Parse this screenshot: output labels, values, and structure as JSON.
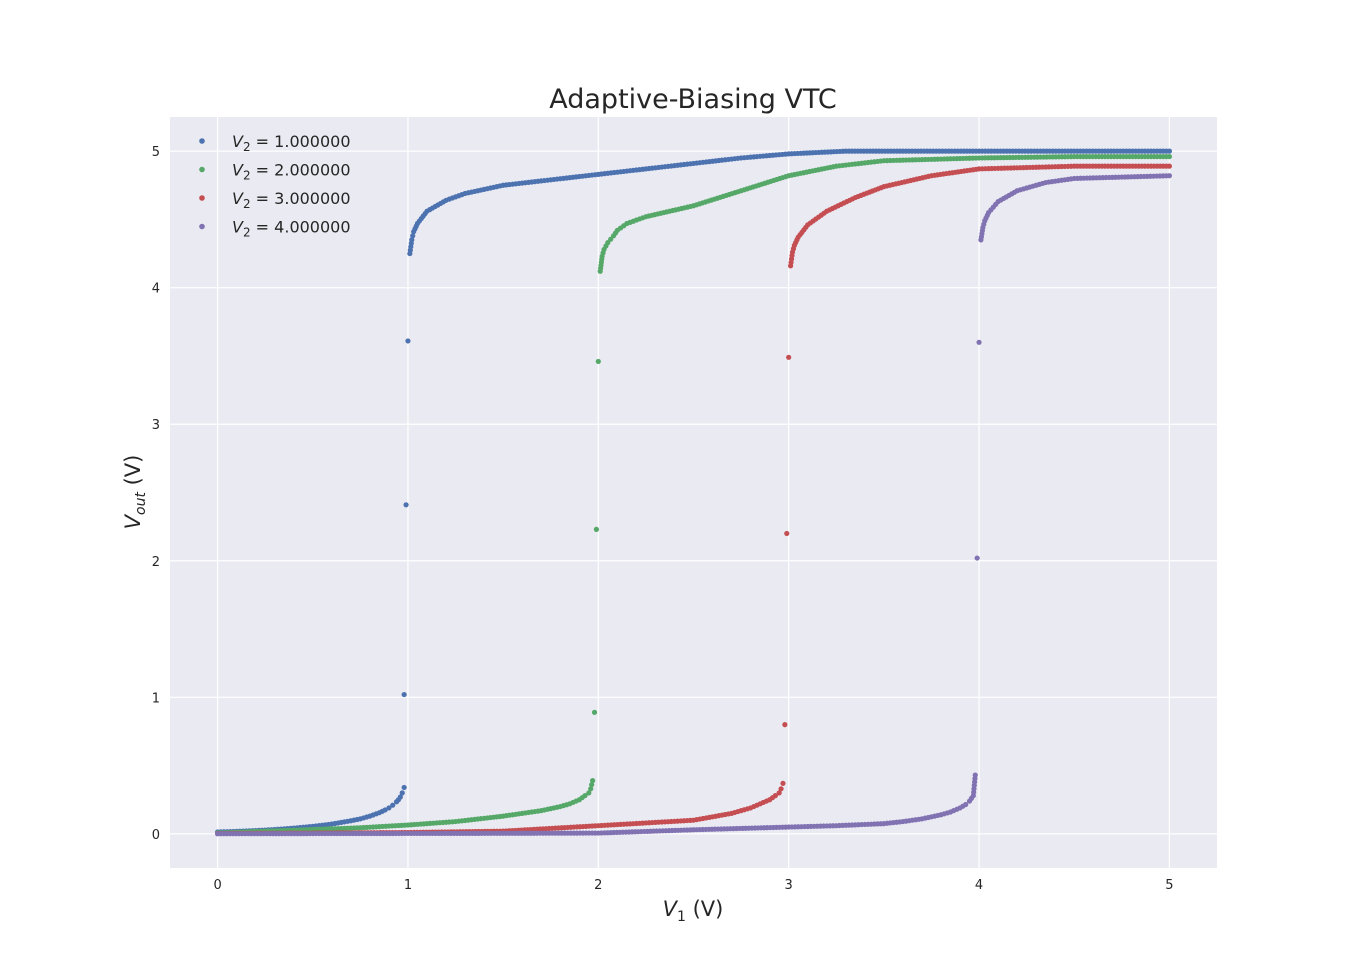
{
  "chart_data": {
    "type": "scatter",
    "title": "Adaptive-Biasing VTC",
    "xlabel": {
      "main": "V",
      "sub": "1",
      "unit": " (V)"
    },
    "ylabel": {
      "main": "V",
      "sub": "out",
      "unit": " (V)"
    },
    "xlim": [
      -0.25,
      5.25
    ],
    "ylim": [
      -0.25,
      5.25
    ],
    "x_ticks": [
      0,
      1,
      2,
      3,
      4,
      5
    ],
    "y_ticks": [
      0,
      1,
      2,
      3,
      4,
      5
    ],
    "grid": true,
    "legend_position": "top-left",
    "style": {
      "background": "#eaeaf2",
      "grid_color": "#ffffff"
    },
    "series": [
      {
        "name": "V_2 = 1.000000",
        "legend_label": {
          "main": "V",
          "sub": "2",
          "rest": " = 1.000000"
        },
        "color": "#4c72b0",
        "points": [
          [
            0.0,
            0.014
          ],
          [
            0.1,
            0.018
          ],
          [
            0.2,
            0.024
          ],
          [
            0.3,
            0.032
          ],
          [
            0.4,
            0.042
          ],
          [
            0.5,
            0.055
          ],
          [
            0.6,
            0.072
          ],
          [
            0.7,
            0.096
          ],
          [
            0.75,
            0.11
          ],
          [
            0.8,
            0.13
          ],
          [
            0.85,
            0.155
          ],
          [
            0.88,
            0.175
          ],
          [
            0.9,
            0.19
          ],
          [
            0.92,
            0.21
          ],
          [
            0.94,
            0.235
          ],
          [
            0.95,
            0.25
          ],
          [
            0.96,
            0.27
          ],
          [
            0.97,
            0.3
          ],
          [
            0.98,
            0.34
          ],
          [
            0.98,
            1.02
          ],
          [
            0.99,
            2.41
          ],
          [
            1.0,
            3.61
          ],
          [
            1.01,
            4.25
          ],
          [
            1.02,
            4.35
          ],
          [
            1.03,
            4.41
          ],
          [
            1.05,
            4.47
          ],
          [
            1.1,
            4.56
          ],
          [
            1.2,
            4.64
          ],
          [
            1.3,
            4.69
          ],
          [
            1.5,
            4.75
          ],
          [
            1.75,
            4.79
          ],
          [
            2.0,
            4.83
          ],
          [
            2.25,
            4.87
          ],
          [
            2.5,
            4.91
          ],
          [
            2.75,
            4.95
          ],
          [
            3.0,
            4.98
          ],
          [
            3.3,
            5.0
          ],
          [
            3.6,
            5.0
          ],
          [
            4.0,
            5.0
          ],
          [
            4.5,
            5.0
          ],
          [
            5.0,
            5.0
          ]
        ]
      },
      {
        "name": "V_2 = 2.000000",
        "legend_label": {
          "main": "V",
          "sub": "2",
          "rest": " = 2.000000"
        },
        "color": "#55a868",
        "points": [
          [
            0.0,
            0.007
          ],
          [
            0.25,
            0.02
          ],
          [
            0.5,
            0.032
          ],
          [
            0.75,
            0.045
          ],
          [
            1.0,
            0.065
          ],
          [
            1.25,
            0.09
          ],
          [
            1.5,
            0.13
          ],
          [
            1.6,
            0.15
          ],
          [
            1.7,
            0.17
          ],
          [
            1.8,
            0.2
          ],
          [
            1.85,
            0.22
          ],
          [
            1.9,
            0.25
          ],
          [
            1.93,
            0.28
          ],
          [
            1.95,
            0.3
          ],
          [
            1.96,
            0.33
          ],
          [
            1.97,
            0.39
          ],
          [
            1.98,
            0.89
          ],
          [
            1.99,
            2.23
          ],
          [
            2.0,
            3.46
          ],
          [
            2.01,
            4.12
          ],
          [
            2.02,
            4.23
          ],
          [
            2.03,
            4.28
          ],
          [
            2.05,
            4.33
          ],
          [
            2.08,
            4.38
          ],
          [
            2.1,
            4.42
          ],
          [
            2.15,
            4.47
          ],
          [
            2.25,
            4.52
          ],
          [
            2.5,
            4.6
          ],
          [
            2.75,
            4.71
          ],
          [
            3.0,
            4.82
          ],
          [
            3.25,
            4.89
          ],
          [
            3.5,
            4.93
          ],
          [
            3.75,
            4.94
          ],
          [
            4.0,
            4.95
          ],
          [
            4.5,
            4.96
          ],
          [
            5.0,
            4.96
          ]
        ]
      },
      {
        "name": "V_2 = 3.000000",
        "legend_label": {
          "main": "V",
          "sub": "2",
          "rest": " = 3.000000"
        },
        "color": "#c44e52",
        "points": [
          [
            0.0,
            0.003
          ],
          [
            0.5,
            0.006
          ],
          [
            1.0,
            0.01
          ],
          [
            1.5,
            0.02
          ],
          [
            2.0,
            0.06
          ],
          [
            2.25,
            0.08
          ],
          [
            2.5,
            0.1
          ],
          [
            2.6,
            0.125
          ],
          [
            2.7,
            0.15
          ],
          [
            2.8,
            0.19
          ],
          [
            2.85,
            0.22
          ],
          [
            2.9,
            0.25
          ],
          [
            2.93,
            0.28
          ],
          [
            2.95,
            0.3
          ],
          [
            2.96,
            0.33
          ],
          [
            2.97,
            0.37
          ],
          [
            2.98,
            0.8
          ],
          [
            2.99,
            2.2
          ],
          [
            3.0,
            3.49
          ],
          [
            3.01,
            4.16
          ],
          [
            3.02,
            4.26
          ],
          [
            3.03,
            4.31
          ],
          [
            3.05,
            4.37
          ],
          [
            3.1,
            4.46
          ],
          [
            3.2,
            4.56
          ],
          [
            3.35,
            4.66
          ],
          [
            3.5,
            4.74
          ],
          [
            3.75,
            4.82
          ],
          [
            4.0,
            4.87
          ],
          [
            4.25,
            4.88
          ],
          [
            4.5,
            4.89
          ],
          [
            5.0,
            4.89
          ]
        ]
      },
      {
        "name": "V_2 = 4.000000",
        "legend_label": {
          "main": "V",
          "sub": "2",
          "rest": " = 4.000000"
        },
        "color": "#8172b2",
        "points": [
          [
            0.0,
            0.001
          ],
          [
            0.5,
            0.002
          ],
          [
            1.0,
            0.003
          ],
          [
            1.5,
            0.004
          ],
          [
            2.0,
            0.006
          ],
          [
            2.5,
            0.03
          ],
          [
            3.0,
            0.05
          ],
          [
            3.25,
            0.06
          ],
          [
            3.5,
            0.075
          ],
          [
            3.6,
            0.09
          ],
          [
            3.7,
            0.11
          ],
          [
            3.8,
            0.14
          ],
          [
            3.85,
            0.16
          ],
          [
            3.9,
            0.19
          ],
          [
            3.93,
            0.215
          ],
          [
            3.95,
            0.24
          ],
          [
            3.96,
            0.26
          ],
          [
            3.97,
            0.28
          ],
          [
            3.98,
            0.43
          ],
          [
            3.99,
            2.02
          ],
          [
            4.0,
            3.6
          ],
          [
            4.01,
            4.35
          ],
          [
            4.02,
            4.44
          ],
          [
            4.03,
            4.49
          ],
          [
            4.05,
            4.55
          ],
          [
            4.1,
            4.63
          ],
          [
            4.2,
            4.71
          ],
          [
            4.35,
            4.77
          ],
          [
            4.5,
            4.8
          ],
          [
            4.75,
            4.81
          ],
          [
            5.0,
            4.82
          ]
        ]
      }
    ]
  }
}
